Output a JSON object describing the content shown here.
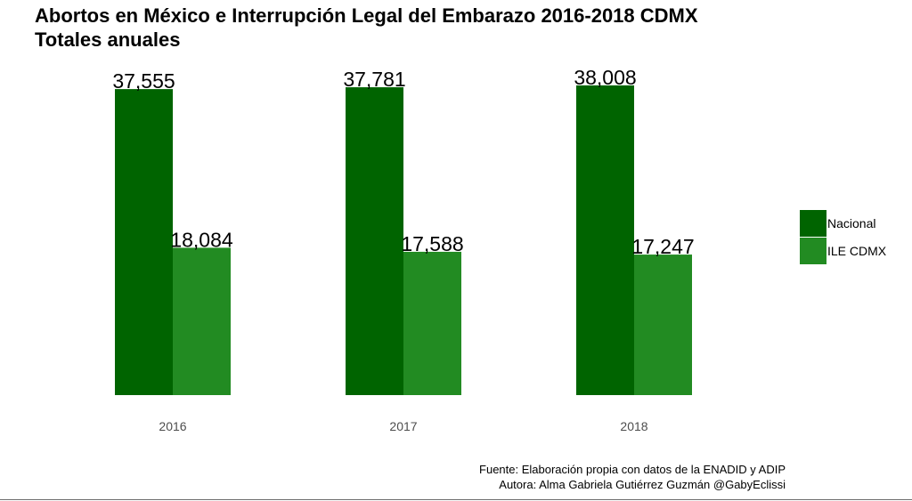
{
  "chart_data": {
    "type": "bar",
    "title": "Abortos en México e Interrupción Legal del Embarazo 2016-2018 CDMX",
    "subtitle": "Totales anuales",
    "categories": [
      "2016",
      "2017",
      "2018"
    ],
    "series": [
      {
        "name": "Nacional",
        "color": "#006400",
        "values": [
          37555,
          37781,
          38008
        ],
        "labels": [
          "37,555",
          "37,781",
          "38,008"
        ]
      },
      {
        "name": "ILE CDMX",
        "color": "#228b22",
        "values": [
          18084,
          17588,
          17247
        ],
        "labels": [
          "18,084",
          "17,588",
          "17,247"
        ]
      }
    ],
    "ylim": [
      0,
      40000
    ],
    "grid": false,
    "legend_position": "right",
    "xlabel": "",
    "ylabel": ""
  },
  "caption": {
    "line1": "Fuente: Elaboración propia con datos de la ENADID y ADIP",
    "line2": "Autora: Alma Gabriela Gutiérrez Guzmán @GabyEclissi"
  }
}
